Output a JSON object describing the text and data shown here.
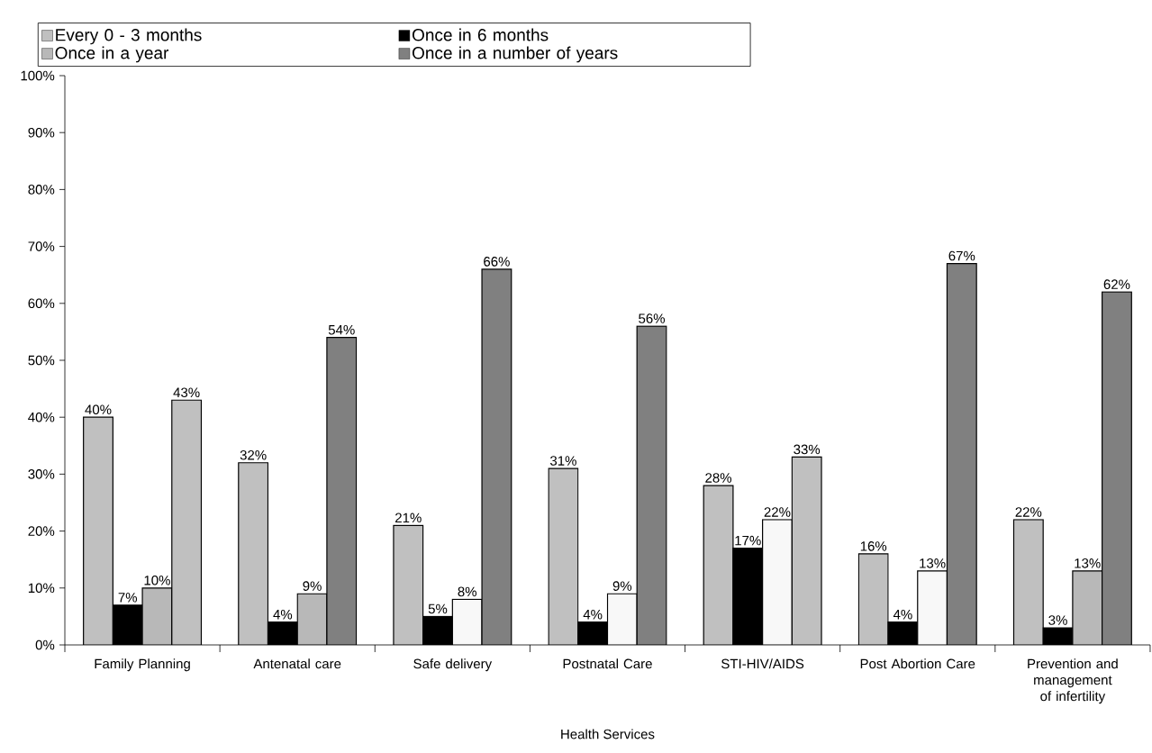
{
  "chart_data": {
    "type": "bar",
    "xlabel": "Health Services",
    "categories": [
      "Family Planning",
      "Antenatal care",
      "Safe delivery",
      "Postnatal Care",
      "STI-HIV/AIDS",
      "Post Abortion Care",
      "Prevention and management of infertility"
    ],
    "series": [
      {
        "name": "Every 0 - 3 months",
        "color": "#c0c0c0",
        "values": [
          40,
          32,
          21,
          31,
          28,
          16,
          22
        ],
        "value_labels": [
          "40%",
          "32%",
          "21%",
          "31%",
          "28%",
          "16%",
          "22%"
        ]
      },
      {
        "name": "Once in 6 months",
        "color": "#000000",
        "values": [
          7,
          4,
          5,
          4,
          17,
          4,
          3
        ],
        "value_labels": [
          "7%",
          "4%",
          "5%",
          "4%",
          "17%",
          "4%",
          "3%"
        ]
      },
      {
        "name": "Once in a year",
        "color": "#b8b8b8",
        "colors": [
          "#b8b8b8",
          "#b8b8b8",
          "#f8f8f8",
          "#f8f8f8",
          "#f8f8f8",
          "#f8f8f8",
          "#b8b8b8"
        ],
        "values": [
          10,
          9,
          8,
          9,
          22,
          13,
          13
        ],
        "value_labels": [
          "10%",
          "9%",
          "8%",
          "9%",
          "22%",
          "13%",
          "13%"
        ]
      },
      {
        "name": "Once in a number of  years",
        "color": "#808080",
        "colors": [
          "#c0c0c0",
          "#808080",
          "#808080",
          "#808080",
          "#c0c0c0",
          "#808080",
          "#808080"
        ],
        "values": [
          43,
          54,
          66,
          56,
          33,
          67,
          62
        ],
        "value_labels": [
          "43%",
          "54%",
          "66%",
          "56%",
          "33%",
          "67%",
          "62%"
        ]
      }
    ],
    "ylim": [
      0,
      100
    ],
    "yticks": [
      {
        "value": 0,
        "label": "0%"
      },
      {
        "value": 10,
        "label": "10%"
      },
      {
        "value": 20,
        "label": "20%"
      },
      {
        "value": 30,
        "label": "30%"
      },
      {
        "value": 40,
        "label": "40%"
      },
      {
        "value": 50,
        "label": "50%"
      },
      {
        "value": 60,
        "label": "60%"
      },
      {
        "value": 70,
        "label": "70%"
      },
      {
        "value": 80,
        "label": "80%"
      },
      {
        "value": 90,
        "label": "90%"
      },
      {
        "value": 100,
        "label": "100%"
      }
    ],
    "legend": "top",
    "grid": false
  }
}
